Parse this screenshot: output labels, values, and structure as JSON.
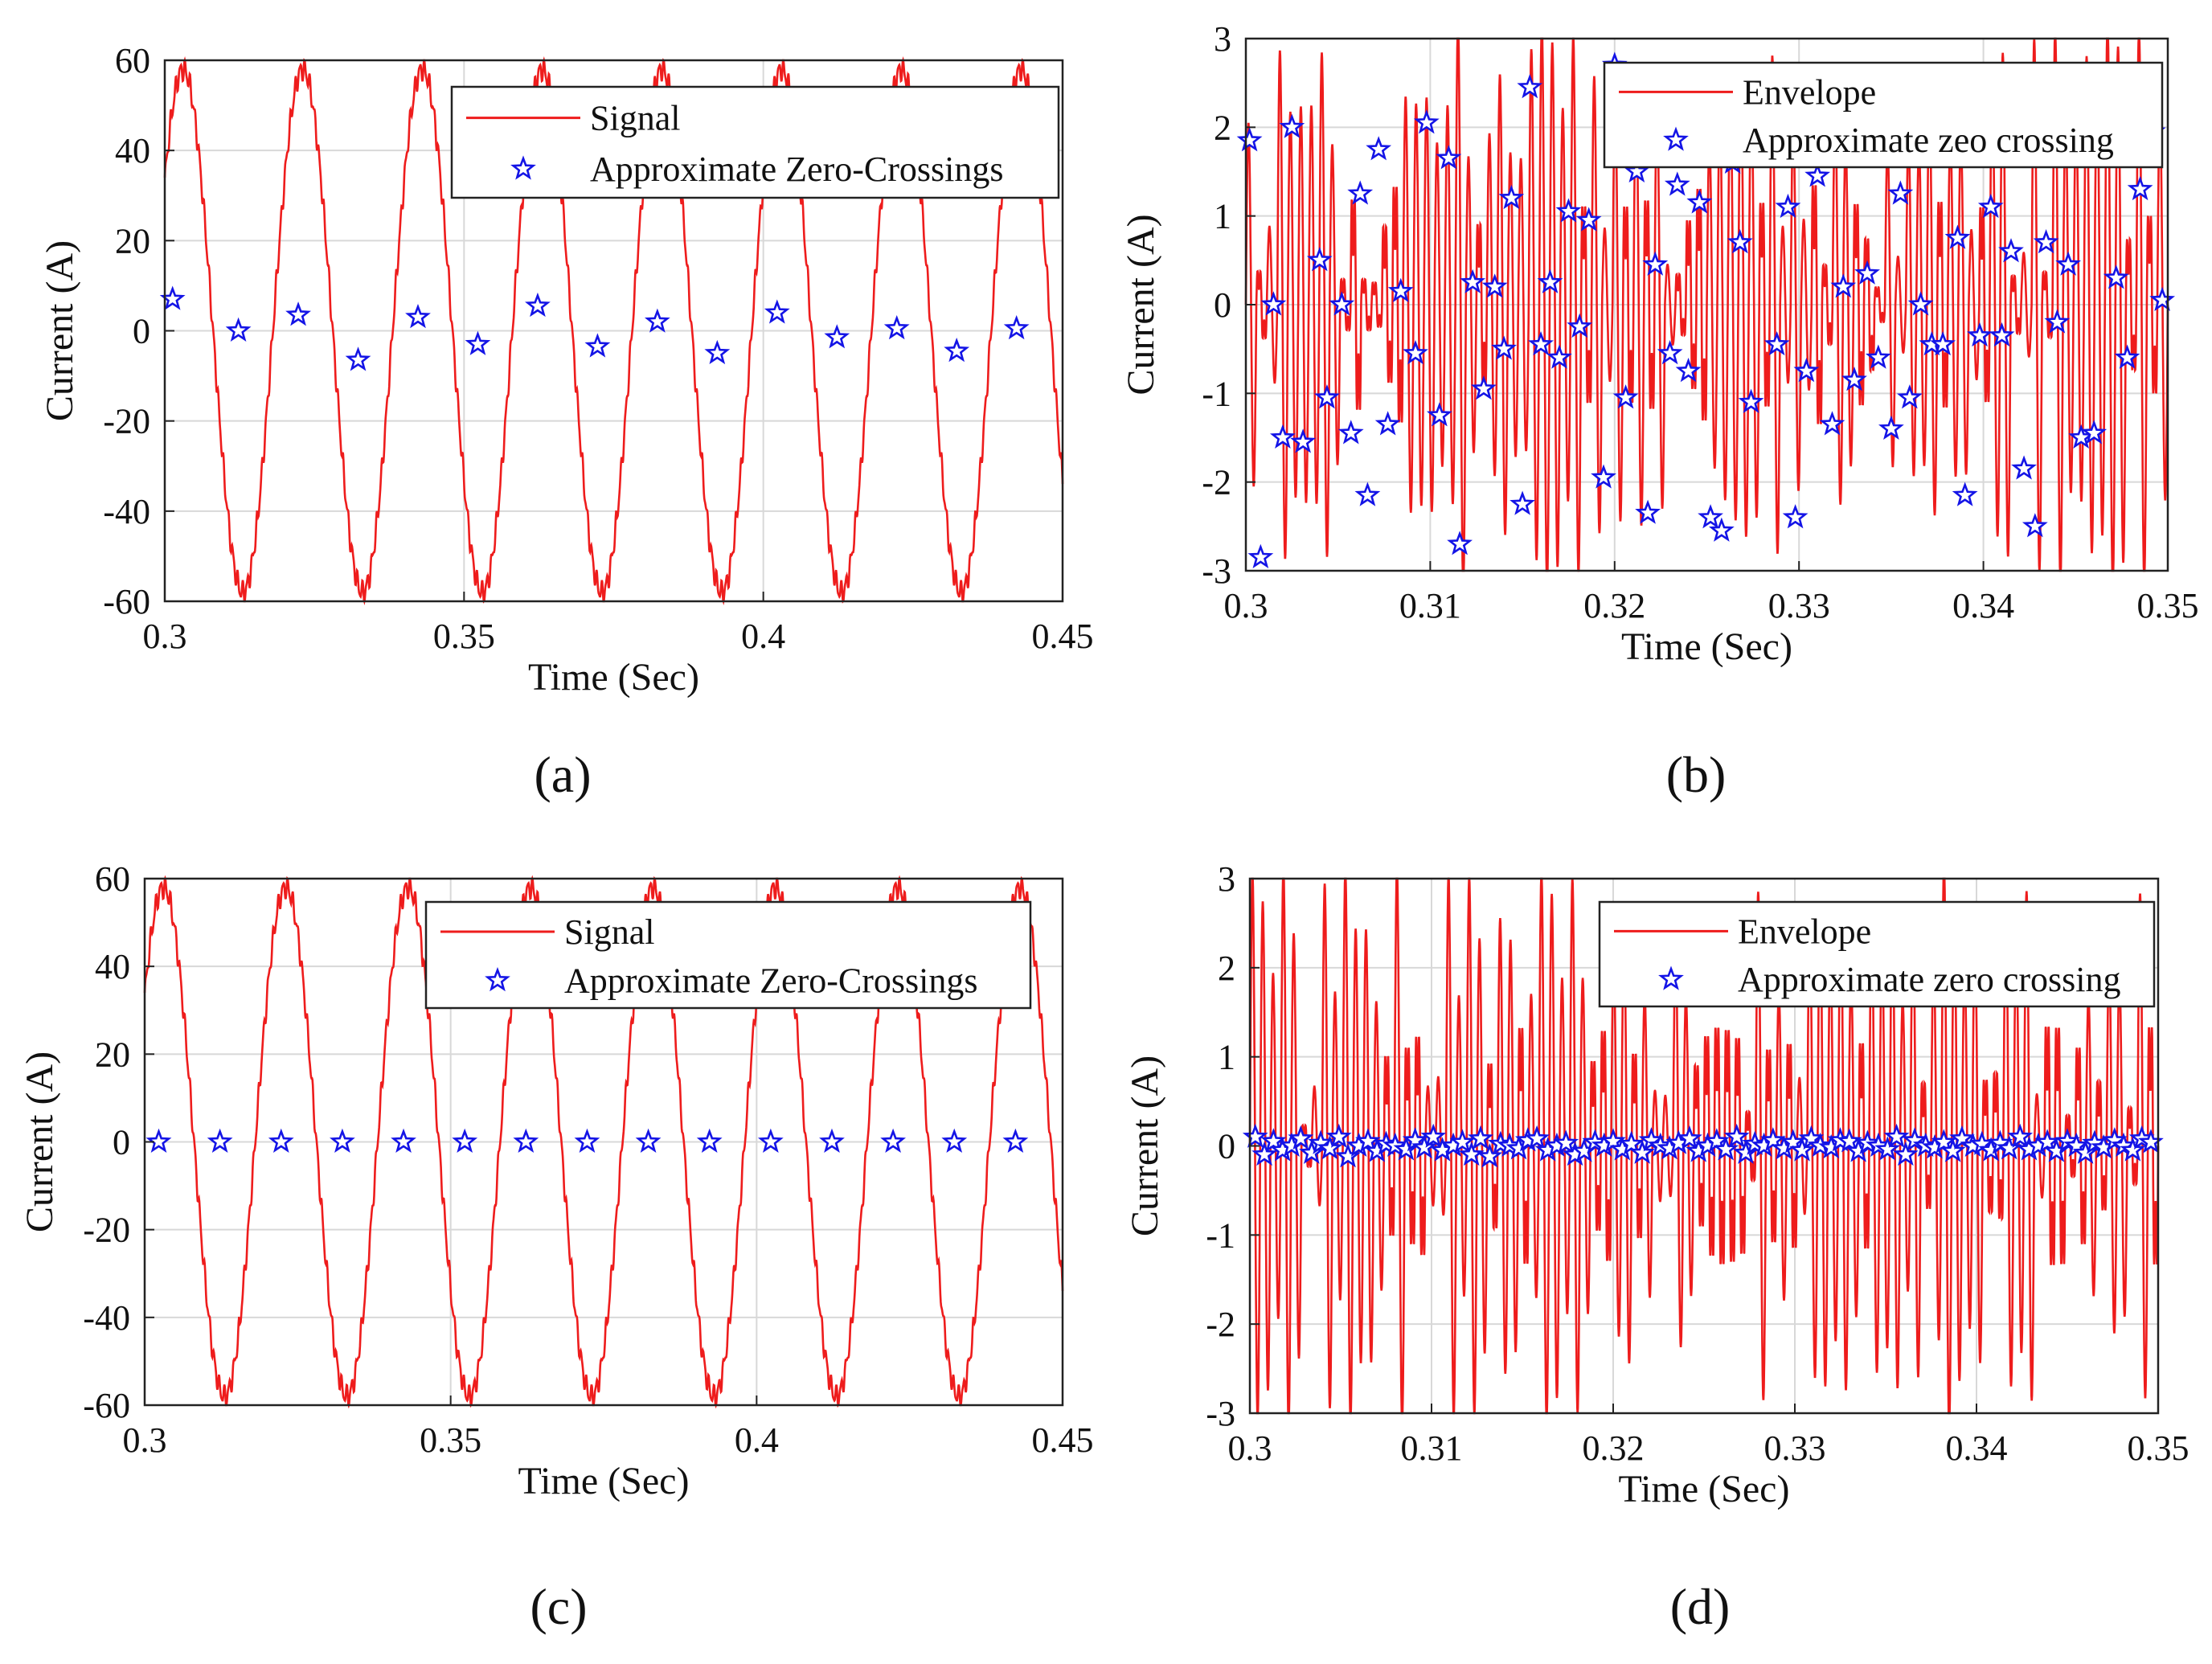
{
  "figure": {
    "captions": [
      "(a)",
      "(b)",
      "(c)",
      "(d)"
    ]
  },
  "colors": {
    "signal": "#ee1c1c",
    "marker": "#1414e6",
    "grid": "#d8d8d8",
    "axis": "#222222"
  },
  "chart_data": [
    {
      "id": "a",
      "type": "line",
      "caption": "(a)",
      "xlabel": "Time (Sec)",
      "ylabel": "Current (A)",
      "xlim": [
        0.3,
        0.45
      ],
      "ylim": [
        -60,
        60
      ],
      "xticks": [
        0.3,
        0.35,
        0.4,
        0.45
      ],
      "xtick_labels": [
        "0.3",
        "0.35",
        "0.4",
        "0.45"
      ],
      "yticks": [
        -60,
        -40,
        -20,
        0,
        20,
        40,
        60
      ],
      "ytick_labels": [
        "-60",
        "-40",
        "-20",
        "0",
        "20",
        "40",
        "60"
      ],
      "grid": true,
      "legend_position": "top-right",
      "series": [
        {
          "name": "Signal",
          "kind": "sine",
          "amplitude": 58,
          "frequency_hz": 50,
          "phase_deg": 35,
          "ripple": 2.0
        },
        {
          "name": "Approximate Zero-Crossings",
          "kind": "markers",
          "x": [
            0.3013,
            0.3123,
            0.3223,
            0.3323,
            0.3423,
            0.3523,
            0.3623,
            0.3723,
            0.3823,
            0.3923,
            0.4023,
            0.4123,
            0.4223,
            0.4323,
            0.4423
          ],
          "y": [
            7,
            0,
            3.5,
            -6.5,
            3,
            -3,
            5.5,
            -3.5,
            2,
            -5,
            4,
            -1.5,
            0.5,
            -4.5,
            0.5
          ]
        }
      ]
    },
    {
      "id": "b",
      "type": "line",
      "caption": "(b)",
      "xlabel": "Time (Sec)",
      "ylabel": "Current (A)",
      "xlim": [
        0.3,
        0.35
      ],
      "ylim": [
        -3,
        3
      ],
      "xticks": [
        0.3,
        0.31,
        0.32,
        0.33,
        0.34,
        0.35
      ],
      "xtick_labels": [
        "0.3",
        "0.31",
        "0.32",
        "0.33",
        "0.34",
        "0.35"
      ],
      "yticks": [
        -3,
        -2,
        -1,
        0,
        1,
        2,
        3
      ],
      "ytick_labels": [
        "-3",
        "-2",
        "-1",
        "0",
        "1",
        "2",
        "3"
      ],
      "grid": true,
      "legend_position": "top-right",
      "series": [
        {
          "name": "Envelope",
          "kind": "oscillation",
          "amplitude": 2.8,
          "freq_cycles": 88,
          "seed": 11
        },
        {
          "name": "Approximate zeo crossing",
          "kind": "markers",
          "x": [
            0.3002,
            0.3008,
            0.3015,
            0.302,
            0.3025,
            0.3031,
            0.304,
            0.3044,
            0.3052,
            0.3057,
            0.3062,
            0.3066,
            0.3072,
            0.3077,
            0.3084,
            0.3092,
            0.3098,
            0.3105,
            0.311,
            0.3116,
            0.3123,
            0.3129,
            0.3135,
            0.314,
            0.3144,
            0.315,
            0.3154,
            0.316,
            0.3165,
            0.317,
            0.3175,
            0.3181,
            0.3186,
            0.3194,
            0.32,
            0.3206,
            0.3212,
            0.3218,
            0.3222,
            0.323,
            0.3234,
            0.324,
            0.3246,
            0.3252,
            0.3258,
            0.3264,
            0.3268,
            0.3274,
            0.328,
            0.3288,
            0.3294,
            0.3298,
            0.3304,
            0.331,
            0.3318,
            0.3324,
            0.333,
            0.3337,
            0.3343,
            0.335,
            0.3355,
            0.336,
            0.3366,
            0.3372,
            0.3378,
            0.3386,
            0.339,
            0.3398,
            0.3404,
            0.341,
            0.3415,
            0.3422,
            0.3428,
            0.3434,
            0.344,
            0.3446,
            0.3453,
            0.346,
            0.3466,
            0.3472,
            0.3478,
            0.3485,
            0.3492,
            0.3497
          ],
          "y": [
            1.85,
            -2.85,
            0.0,
            -1.5,
            2.0,
            -1.55,
            0.5,
            -1.05,
            0.0,
            -1.45,
            1.25,
            -2.15,
            1.75,
            -1.35,
            0.15,
            -0.55,
            2.05,
            -1.25,
            1.65,
            -2.7,
            0.25,
            -0.95,
            0.2,
            -0.5,
            1.2,
            -2.25,
            2.45,
            -0.45,
            0.25,
            -0.6,
            1.05,
            -0.25,
            0.95,
            -1.95,
            2.7,
            -1.05,
            1.5,
            -2.35,
            0.45,
            -0.55,
            1.35,
            -0.75,
            1.15,
            -2.4,
            -2.55,
            1.6,
            0.7,
            -1.1,
            1.8,
            -0.45,
            1.1,
            -2.4,
            -0.75,
            1.45,
            -1.35,
            0.2,
            -0.85,
            0.35,
            -0.6,
            -1.4,
            1.25,
            -1.05,
            0.0,
            -0.45,
            -0.45,
            0.75,
            -2.15,
            -0.35,
            1.1,
            -0.35,
            0.6,
            -1.85,
            -2.5,
            0.7,
            -0.2,
            0.45,
            -1.5,
            -1.45,
            1.9,
            0.3,
            -0.6,
            1.3,
            1.95,
            0.05
          ]
        }
      ]
    },
    {
      "id": "c",
      "type": "line",
      "caption": "(c)",
      "xlabel": "Time (Sec)",
      "ylabel": "Current (A)",
      "xlim": [
        0.3,
        0.45
      ],
      "ylim": [
        -60,
        60
      ],
      "xticks": [
        0.3,
        0.35,
        0.4,
        0.45
      ],
      "xtick_labels": [
        "0.3",
        "0.35",
        "0.4",
        "0.45"
      ],
      "yticks": [
        -60,
        -40,
        -20,
        0,
        20,
        40,
        60
      ],
      "ytick_labels": [
        "-60",
        "-40",
        "-20",
        "0",
        "20",
        "40",
        "60"
      ],
      "grid": true,
      "legend_position": "top-right",
      "series": [
        {
          "name": "Signal",
          "kind": "sine",
          "amplitude": 58,
          "frequency_hz": 50,
          "phase_deg": 35,
          "ripple": 2.0
        },
        {
          "name": "Approximate Zero-Crossings",
          "kind": "markers",
          "x": [
            0.3023,
            0.3123,
            0.3223,
            0.3323,
            0.3423,
            0.3523,
            0.3623,
            0.3723,
            0.3823,
            0.3923,
            0.4023,
            0.4123,
            0.4223,
            0.4323,
            0.4423
          ],
          "y": [
            0,
            0,
            0,
            0,
            0,
            0,
            0,
            0,
            0,
            0,
            0,
            0,
            0,
            0,
            0
          ]
        }
      ]
    },
    {
      "id": "d",
      "type": "line",
      "caption": "(d)",
      "xlabel": "Time (Sec)",
      "ylabel": "Current (A)",
      "xlim": [
        0.3,
        0.35
      ],
      "ylim": [
        -3,
        3
      ],
      "xticks": [
        0.3,
        0.31,
        0.32,
        0.33,
        0.34,
        0.35
      ],
      "xtick_labels": [
        "0.3",
        "0.31",
        "0.32",
        "0.33",
        "0.34",
        "0.35"
      ],
      "yticks": [
        -3,
        -2,
        -1,
        0,
        1,
        2,
        3
      ],
      "ytick_labels": [
        "-3",
        "-2",
        "-1",
        "0",
        "1",
        "2",
        "3"
      ],
      "grid": true,
      "legend_position": "top-right",
      "series": [
        {
          "name": "Envelope",
          "kind": "oscillation",
          "amplitude": 2.8,
          "freq_cycles": 88,
          "seed": 29
        },
        {
          "name": "Approximate zero crossing",
          "kind": "markers",
          "x": [
            0.3003,
            0.3008,
            0.3013,
            0.3018,
            0.3023,
            0.3028,
            0.3034,
            0.3039,
            0.3044,
            0.3049,
            0.3054,
            0.306,
            0.3065,
            0.307,
            0.3075,
            0.308,
            0.3086,
            0.3091,
            0.3096,
            0.3101,
            0.3106,
            0.3112,
            0.3117,
            0.3122,
            0.3127,
            0.3132,
            0.3138,
            0.3143,
            0.3148,
            0.3153,
            0.3158,
            0.3164,
            0.3169,
            0.3174,
            0.3179,
            0.3184,
            0.319,
            0.3195,
            0.32,
            0.3205,
            0.321,
            0.3216,
            0.3221,
            0.3226,
            0.3231,
            0.3236,
            0.3242,
            0.3247,
            0.3252,
            0.3257,
            0.3262,
            0.3268,
            0.3273,
            0.3278,
            0.3283,
            0.3288,
            0.3294,
            0.3299,
            0.3304,
            0.3309,
            0.3314,
            0.332,
            0.3325,
            0.333,
            0.3335,
            0.334,
            0.3346,
            0.3351,
            0.3356,
            0.3361,
            0.3366,
            0.3372,
            0.3377,
            0.3382,
            0.3387,
            0.3392,
            0.3398,
            0.3403,
            0.3408,
            0.3413,
            0.3418,
            0.3424,
            0.3429,
            0.3434,
            0.3439,
            0.3444,
            0.345,
            0.3455,
            0.346,
            0.3465,
            0.347,
            0.3476,
            0.3481,
            0.3486,
            0.3491,
            0.3496
          ],
          "y": [
            0.1,
            -0.1,
            0.05,
            -0.05,
            0.0,
            0.08,
            -0.08,
            0.03,
            -0.03,
            0.1,
            -0.12,
            0.0,
            0.05,
            -0.06,
            0.02,
            0.0,
            -0.04,
            0.06,
            -0.02,
            0.1,
            -0.05,
            0.0,
            0.04,
            -0.1,
            0.08,
            -0.12,
            0.02,
            0.0,
            -0.03,
            0.06,
            0.08,
            -0.05,
            0.0,
            0.03,
            -0.1,
            -0.06,
            0.04,
            0.0,
            0.05,
            -0.04,
            0.02,
            -0.08,
            0.06,
            0.0,
            -0.03,
            0.03,
            0.08,
            -0.06,
            0.0,
            0.05,
            -0.04,
            0.1,
            -0.08,
            0.02,
            0.0,
            0.06,
            -0.03,
            0.04,
            -0.05,
            0.08,
            0.0,
            -0.02,
            0.06,
            0.05,
            -0.06,
            0.03,
            0.0,
            -0.04,
            0.1,
            -0.1,
            0.06,
            0.0,
            -0.02,
            0.04,
            -0.06,
            0.08,
            0.0,
            0.02,
            -0.05,
            0.03,
            -0.03,
            0.1,
            -0.04,
            0.0,
            0.04,
            -0.06,
            0.05,
            0.0,
            -0.08,
            0.03,
            -0.02,
            0.06,
            0.0,
            -0.05,
            0.08,
            0.04
          ]
        }
      ]
    }
  ]
}
